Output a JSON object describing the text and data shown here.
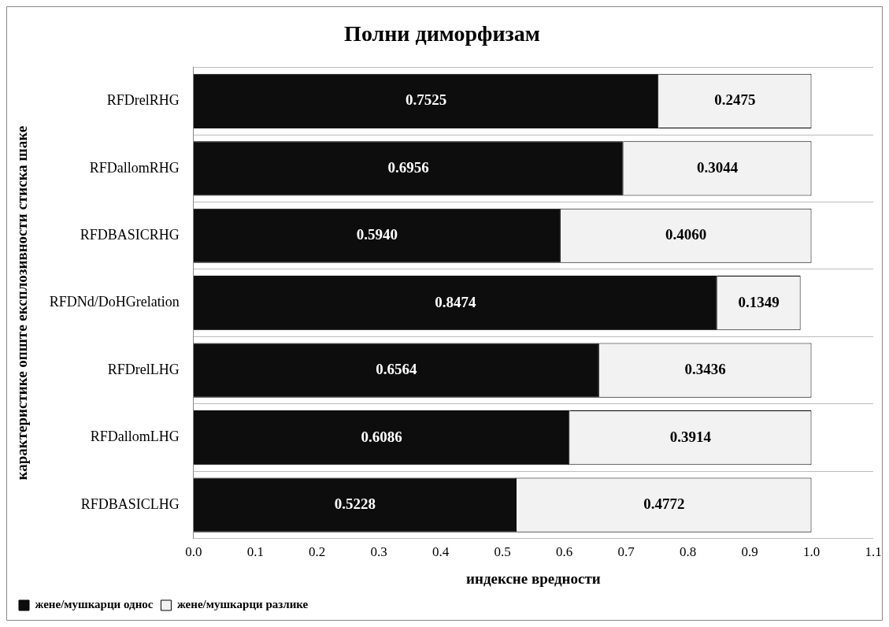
{
  "chart_data": {
    "type": "bar",
    "orientation": "horizontal",
    "stacked": true,
    "title": "Полни диморфизам",
    "xlabel": "индексне вредности",
    "ylabel": "карактеристике опште експлозивности стиска шаке",
    "categories": [
      "RFDrelRHG",
      "RFDallomRHG",
      "RFDBASICRHG",
      "RFDNd/DoHGrelation",
      "RFDrelLHG",
      "RFDallomLHG",
      "RFDBASICLHG"
    ],
    "series": [
      {
        "name": "жене/мушкарци однос",
        "color": "#0d0d0d",
        "values": [
          0.7525,
          0.6956,
          0.594,
          0.8474,
          0.6564,
          0.6086,
          0.5228
        ],
        "value_labels": [
          "0.7525",
          "0.6956",
          "0.5940",
          "0.8474",
          "0.6564",
          "0.6086",
          "0.5228"
        ]
      },
      {
        "name": "жене/мушкарци разлике",
        "color": "#f2f2f2",
        "values": [
          0.2475,
          0.3044,
          0.406,
          0.1349,
          0.3436,
          0.3914,
          0.4772
        ],
        "value_labels": [
          "0.2475",
          "0.3044",
          "0.4060",
          "0.1349",
          "0.3436",
          "0.3914",
          "0.4772"
        ]
      }
    ],
    "xlim": [
      0,
      1.1
    ],
    "xticks": [
      {
        "value": 0,
        "label": "0.0"
      },
      0.1,
      0.2,
      0.3,
      0.4,
      0.5,
      0.6,
      0.7,
      0.8,
      0.9,
      {
        "value": 1,
        "label": "1.0"
      },
      1.1
    ],
    "grid": "y",
    "legend": "bottom left"
  }
}
